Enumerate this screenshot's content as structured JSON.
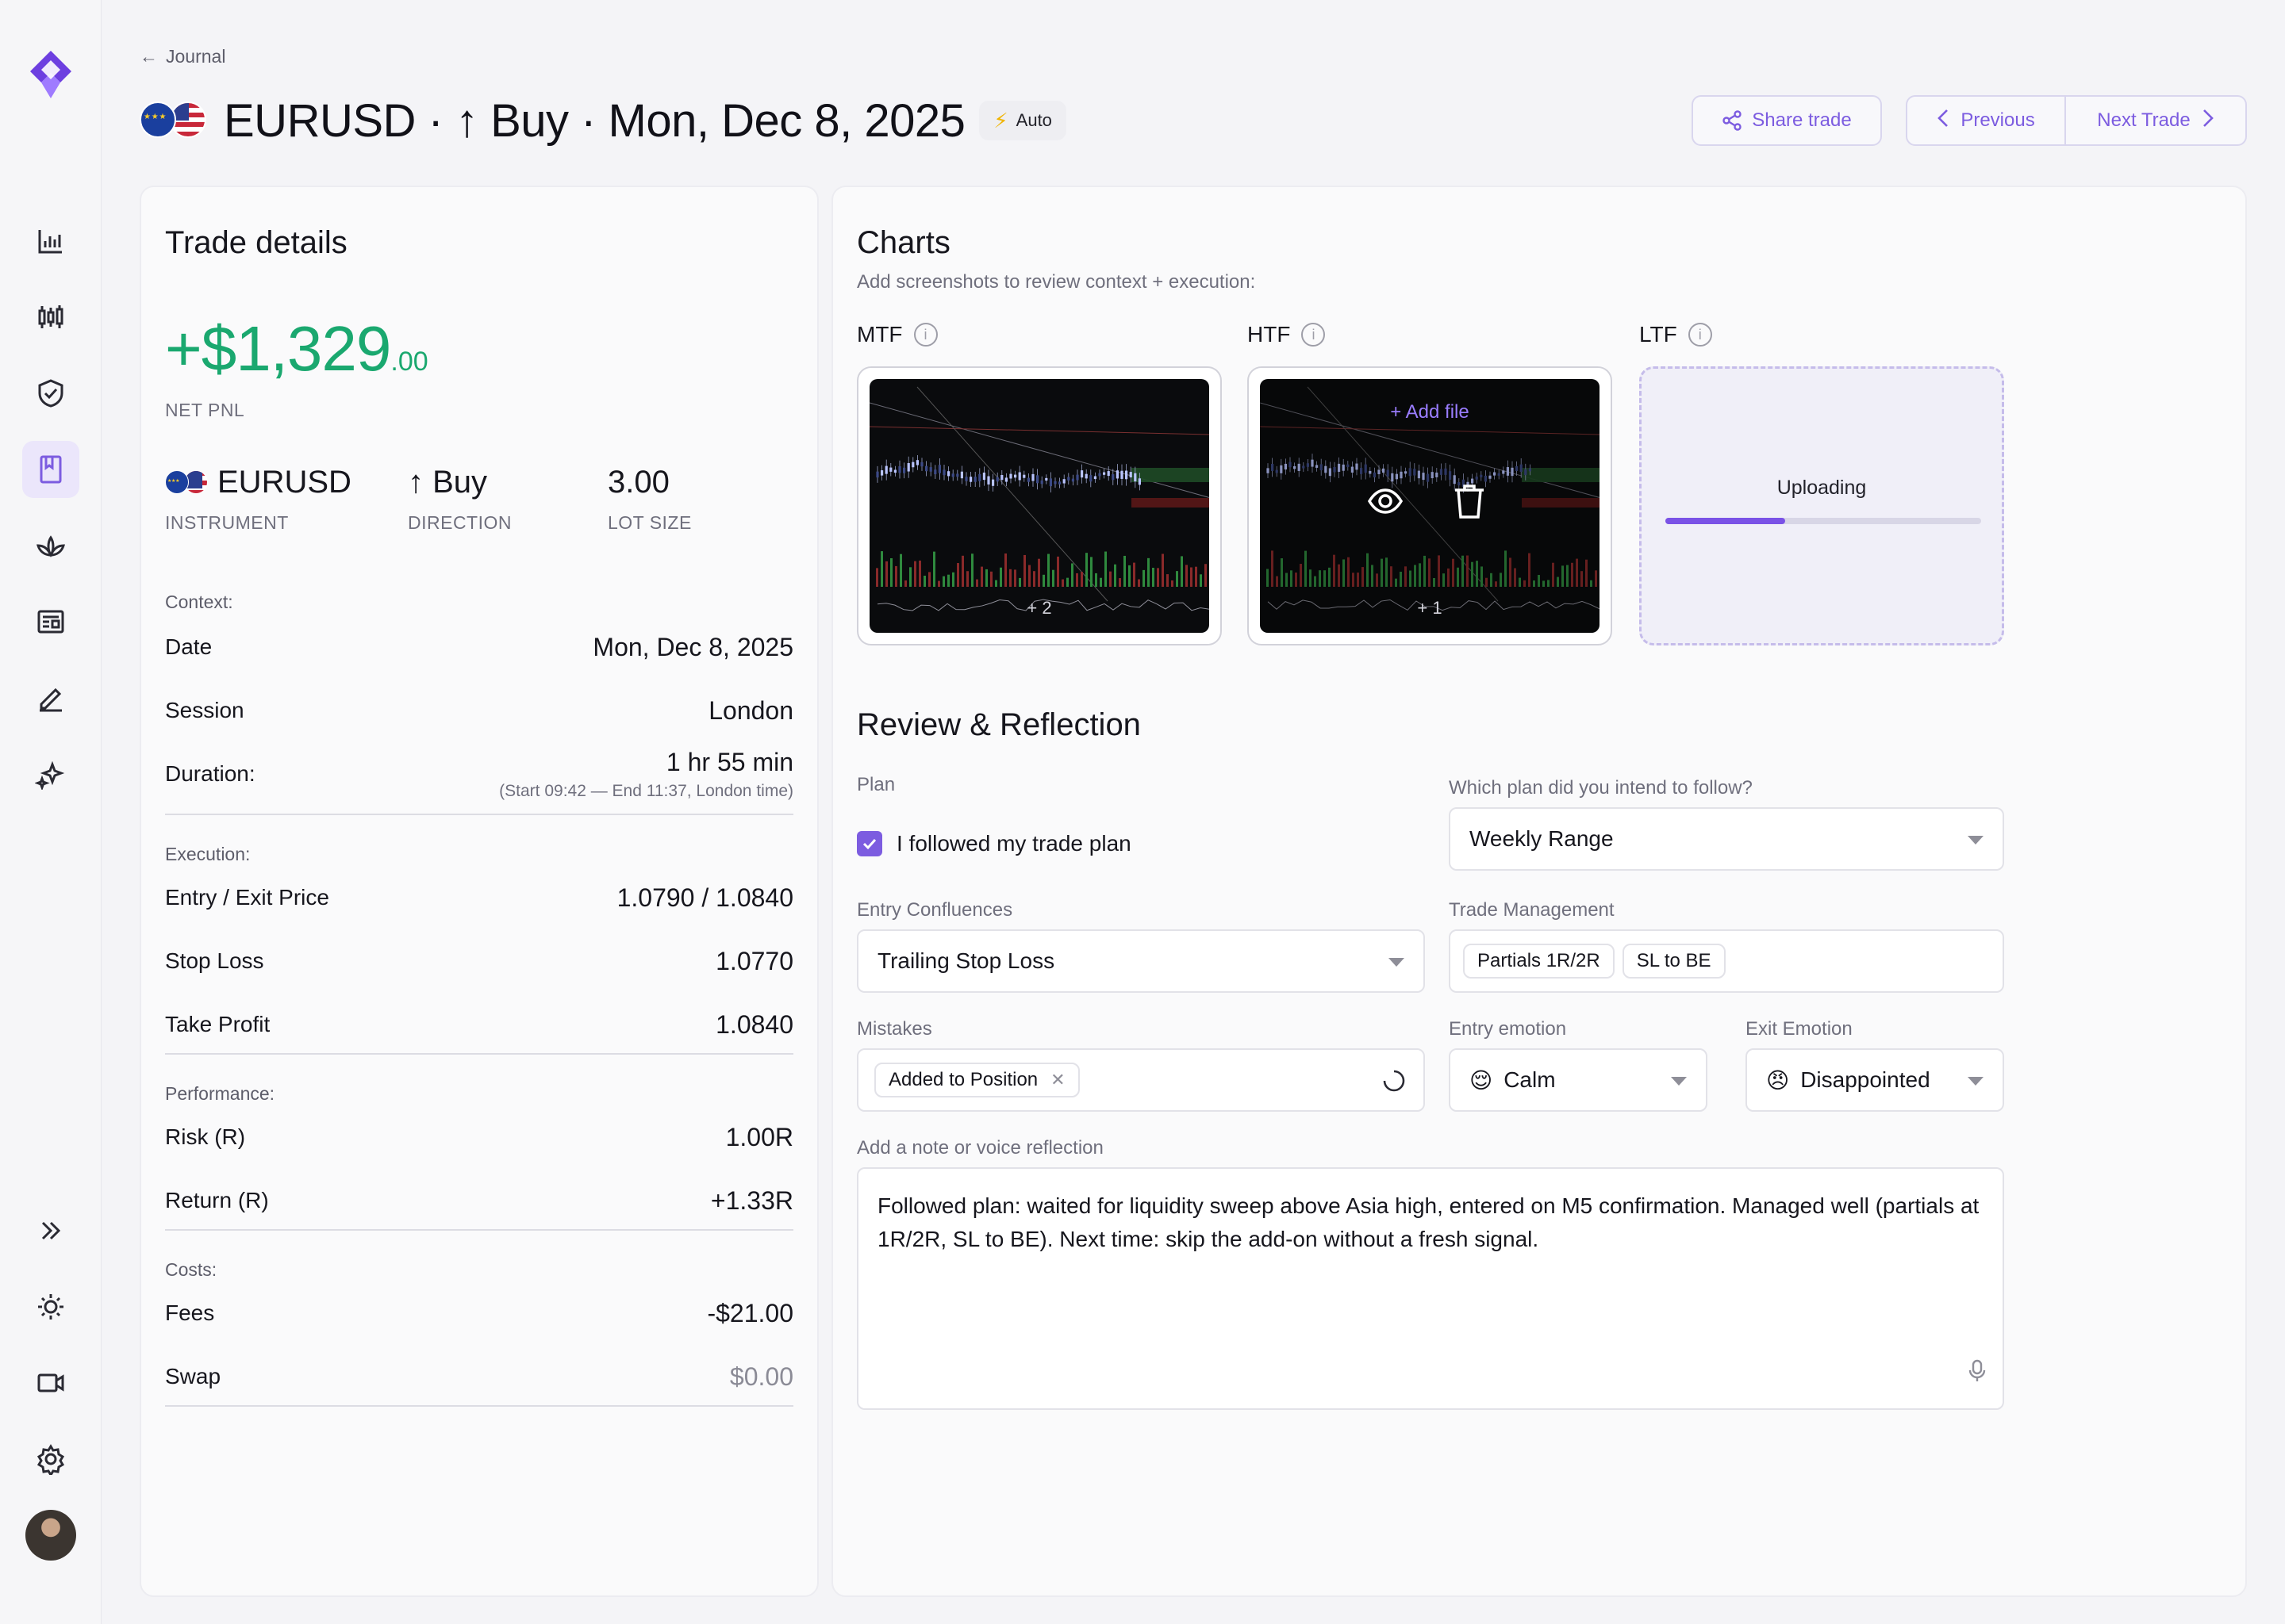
{
  "header": {
    "back_label": "Journal",
    "title": "EURUSD · ↑ Buy · Mon, Dec 8, 2025",
    "badge": "Auto",
    "share_label": "Share trade",
    "previous_label": "Previous",
    "next_label": "Next Trade"
  },
  "sidebar": {
    "items": [
      {
        "icon": "bar-chart-icon"
      },
      {
        "icon": "candlestick-icon"
      },
      {
        "icon": "shield-check-icon"
      },
      {
        "icon": "journal-book-icon",
        "active": true
      },
      {
        "icon": "lotus-icon"
      },
      {
        "icon": "newspaper-icon"
      },
      {
        "icon": "pencil-icon"
      },
      {
        "icon": "sparkles-icon"
      }
    ],
    "bottom": [
      {
        "icon": "expand-chevrons-icon"
      },
      {
        "icon": "sun-icon"
      },
      {
        "icon": "video-icon"
      },
      {
        "icon": "gear-icon"
      }
    ]
  },
  "trade": {
    "card_title": "Trade details",
    "pnl_main": "+$1,329",
    "pnl_cents": ".00",
    "pnl_label": "NET PNL",
    "instrument": "EURUSD",
    "instrument_label": "INSTRUMENT",
    "direction": "↑ Buy",
    "direction_label": "DIRECTION",
    "lot_size": "3.00",
    "lot_size_label": "LOT SIZE",
    "context_label": "Context:",
    "date_label": "Date",
    "date_value": "Mon, Dec 8, 2025",
    "session_label": "Session",
    "session_value": "London",
    "duration_label": "Duration:",
    "duration_value": "1 hr 55 min",
    "duration_sub": "(Start 09:42 — End 11:37, London time)",
    "execution_label": "Execution:",
    "entry_exit_label": "Entry / Exit Price",
    "entry_exit_value": "1.0790 / 1.0840",
    "stop_loss_label": "Stop Loss",
    "stop_loss_value": "1.0770",
    "take_profit_label": "Take Profit",
    "take_profit_value": "1.0840",
    "performance_label": "Performance:",
    "risk_label": "Risk (R)",
    "risk_value": "1.00R",
    "return_label": "Return (R)",
    "return_value": "+1.33R",
    "costs_label": "Costs:",
    "fees_label": "Fees",
    "fees_value": "-$21.00",
    "swap_label": "Swap",
    "swap_value": "$0.00"
  },
  "charts": {
    "title": "Charts",
    "subtitle": "Add screenshots to review context + execution:",
    "mtf_label": "MTF",
    "htf_label": "HTF",
    "ltf_label": "LTF",
    "mtf_count": "+ 2",
    "htf_count": "+ 1",
    "add_file": "+ Add file",
    "uploading": "Uploading",
    "upload_progress": 0.38
  },
  "review": {
    "title": "Review & Reflection",
    "plan_label": "Plan",
    "followed_plan": "I followed my trade plan",
    "followed_checked": true,
    "which_plan_label": "Which plan did you intend to follow?",
    "which_plan_value": "Weekly Range",
    "confluences_label": "Entry Confluences",
    "confluences_value": "Trailing Stop Loss",
    "management_label": "Trade Management",
    "management_tags": [
      "Partials 1R/2R",
      "SL to BE"
    ],
    "mistakes_label": "Mistakes",
    "mistakes_tags": [
      "Added to Position"
    ],
    "entry_emotion_label": "Entry emotion",
    "entry_emotion_emoji": "😌",
    "entry_emotion_value": "Calm",
    "exit_emotion_label": "Exit Emotion",
    "exit_emotion_emoji": "😠",
    "exit_emotion_value": "Disappointed",
    "note_label": "Add a note or voice reflection",
    "note_text": "Followed plan: waited for liquidity sweep above Asia high, entered on M5 confirmation. Managed well (partials at 1R/2R, SL to BE). Next time: skip the add-on without a fresh signal."
  },
  "colors": {
    "accent": "#7c5ce0",
    "profit": "#1aa86f",
    "background": "#f4f4f7"
  }
}
